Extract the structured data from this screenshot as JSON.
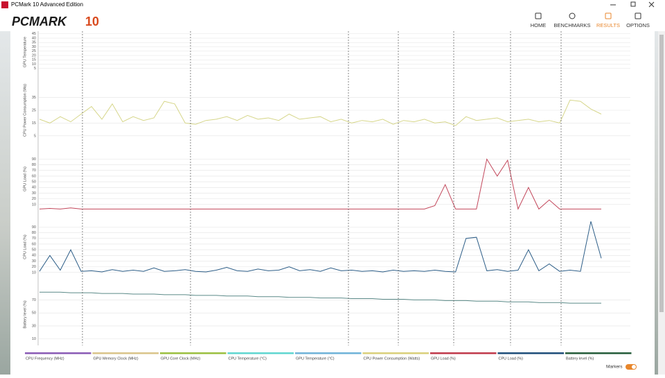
{
  "window": {
    "title": "PCMark 10 Advanced Edition"
  },
  "header": {
    "logo": "PCMARK",
    "logo_number": "10",
    "nav": [
      "HOME",
      "BENCHMARKS",
      "RESULTS",
      "OPTIONS"
    ],
    "active": 2
  },
  "chart_data": [
    {
      "type": "line",
      "ylabel": "GPU Temperature",
      "ylim": [
        0,
        48
      ],
      "yticks": [
        5,
        10,
        15,
        20,
        25,
        30,
        35,
        40,
        45
      ],
      "series": []
    },
    {
      "type": "line",
      "ylabel": "CPU Power Consumption (Wa)",
      "ylim": [
        0,
        50
      ],
      "yticks": [
        5,
        15,
        25,
        35
      ],
      "series": [
        {
          "color": "#d6d68a",
          "values": [
            18,
            15,
            20,
            16,
            22,
            28,
            18,
            30,
            16,
            20,
            17,
            19,
            32,
            30,
            15,
            14,
            17,
            18,
            20,
            17,
            21,
            18,
            19,
            17,
            22,
            18,
            19,
            20,
            16,
            18,
            15,
            17,
            16,
            18,
            14,
            17,
            16,
            18,
            15,
            16,
            13,
            20,
            17,
            18,
            19,
            16,
            17,
            18,
            16,
            17,
            15,
            33,
            32,
            26,
            22
          ]
        }
      ]
    },
    {
      "type": "line",
      "ylabel": "GPU Load (%)",
      "ylim": [
        0,
        110
      ],
      "yticks": [
        10,
        20,
        30,
        40,
        50,
        60,
        70,
        80,
        90
      ],
      "series": [
        {
          "color": "#c2465a",
          "values": [
            2,
            3,
            2,
            4,
            2,
            2,
            2,
            2,
            2,
            2,
            2,
            2,
            2,
            2,
            2,
            2,
            2,
            2,
            2,
            2,
            2,
            2,
            2,
            2,
            2,
            2,
            2,
            2,
            2,
            2,
            2,
            2,
            2,
            2,
            2,
            2,
            2,
            2,
            8,
            45,
            2,
            2,
            2,
            90,
            60,
            88,
            2,
            40,
            2,
            18,
            2,
            2,
            2,
            2,
            2
          ]
        }
      ]
    },
    {
      "type": "line",
      "ylabel": "CPU Load (%)",
      "ylim": [
        0,
        110
      ],
      "yticks": [
        10,
        20,
        30,
        40,
        50,
        60,
        70,
        80,
        90
      ],
      "series": [
        {
          "color": "#2c5d87",
          "values": [
            12,
            40,
            14,
            50,
            12,
            13,
            11,
            15,
            12,
            14,
            12,
            18,
            12,
            13,
            15,
            12,
            11,
            14,
            19,
            13,
            12,
            16,
            13,
            14,
            20,
            13,
            15,
            12,
            18,
            13,
            14,
            12,
            13,
            11,
            14,
            12,
            13,
            12,
            14,
            12,
            11,
            70,
            72,
            13,
            15,
            12,
            14,
            50,
            13,
            25,
            12,
            14,
            12,
            100,
            35
          ]
        }
      ]
    },
    {
      "type": "line",
      "ylabel": "Battery level (%)",
      "ylim": [
        0,
        95
      ],
      "yticks": [
        10,
        30,
        50,
        70
      ],
      "series": [
        {
          "color": "#5b8a88",
          "values": [
            82,
            82,
            82,
            81,
            81,
            81,
            80,
            80,
            80,
            79,
            79,
            79,
            78,
            78,
            78,
            77,
            77,
            77,
            76,
            76,
            76,
            75,
            75,
            75,
            74,
            74,
            74,
            73,
            73,
            73,
            72,
            72,
            72,
            71,
            71,
            71,
            70,
            70,
            70,
            69,
            69,
            69,
            68,
            68,
            68,
            67,
            67,
            67,
            66,
            66,
            66,
            65,
            65,
            65,
            65
          ]
        }
      ]
    }
  ],
  "legend": [
    {
      "name": "CPU Frequency (MHz)",
      "color": "#8a5bb5"
    },
    {
      "name": "GPU Memory Clock (MHz)",
      "color": "#d9c48a"
    },
    {
      "name": "GPU Core Clock (MHz)",
      "color": "#9bbf3f"
    },
    {
      "name": "CPU Temperature (°C)",
      "color": "#5fd6d0"
    },
    {
      "name": "GPU Temperature (°C)",
      "color": "#6fb3d8"
    },
    {
      "name": "CPU Power Consumption (Watts)",
      "color": "#d9cf7a"
    },
    {
      "name": "GPU Load (%)",
      "color": "#c0394b"
    },
    {
      "name": "CPU Load (%)",
      "color": "#1e4e79"
    },
    {
      "name": "Battery level (%)",
      "color": "#245c3a"
    }
  ],
  "markers_label": "Markers"
}
